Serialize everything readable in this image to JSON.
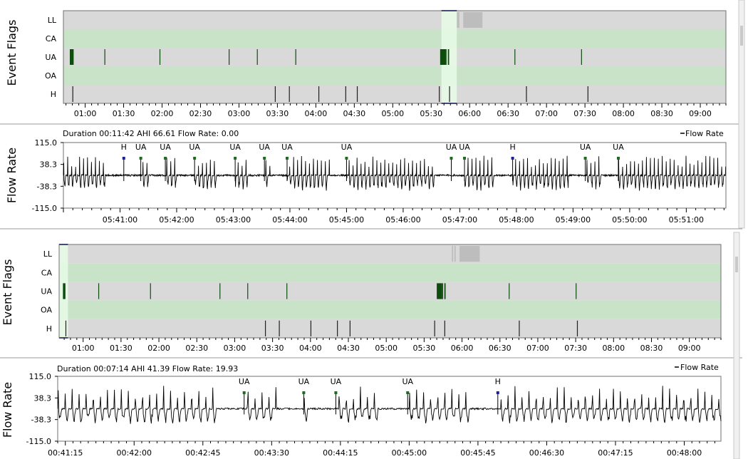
{
  "colors": {
    "row_gray": "#d9d9d9",
    "row_green": "#c8e3c8",
    "ua_mark": "#0e4d0e",
    "h_mark": "#1f1f9e",
    "ll_mark": "#bdbdbd",
    "selection_fill": "#e8fbe8",
    "selection_border": "#1a237e",
    "trace": "#000000"
  },
  "chart_data": [
    {
      "type": "event-flags",
      "ylabel": "Event Flags",
      "rows": [
        "LL",
        "CA",
        "UA",
        "OA",
        "H"
      ],
      "x_unit": "hh:mm",
      "xlim": [
        "00:43",
        "09:20"
      ],
      "tick_labels": [
        "01:00",
        "01:30",
        "02:00",
        "02:30",
        "03:00",
        "03:30",
        "04:00",
        "04:30",
        "05:00",
        "05:30",
        "06:00",
        "06:30",
        "07:00",
        "07:30",
        "08:00",
        "08:30",
        "09:00"
      ],
      "selection": [
        "05:38",
        "05:50"
      ],
      "events": {
        "LL": [
          {
            "t": "05:50",
            "d": 1
          },
          {
            "t": "05:51",
            "d": 1
          },
          {
            "t": "05:55",
            "d": 15
          }
        ],
        "UA": [
          {
            "t": "00:48",
            "d": 3
          },
          {
            "t": "01:15",
            "d": 0
          },
          {
            "t": "01:58",
            "d": 0
          },
          {
            "t": "02:52",
            "d": 0
          },
          {
            "t": "03:14",
            "d": 0
          },
          {
            "t": "03:44",
            "d": 0
          },
          {
            "t": "05:37",
            "d": 4
          },
          {
            "t": "05:41",
            "d": 1
          },
          {
            "t": "05:43",
            "d": 1
          },
          {
            "t": "06:35",
            "d": 0
          },
          {
            "t": "07:27",
            "d": 0
          }
        ],
        "H": [
          {
            "t": "00:50",
            "d": 0
          },
          {
            "t": "03:28",
            "d": 0
          },
          {
            "t": "03:39",
            "d": 0
          },
          {
            "t": "04:02",
            "d": 0
          },
          {
            "t": "04:23",
            "d": 0
          },
          {
            "t": "04:32",
            "d": 0
          },
          {
            "t": "05:36",
            "d": 0
          },
          {
            "t": "05:44",
            "d": 0
          },
          {
            "t": "06:44",
            "d": 0
          },
          {
            "t": "07:32",
            "d": 0
          }
        ]
      }
    },
    {
      "type": "line",
      "title": "Duration 00:11:42 AHI 66.61 Flow Rate: 0.00",
      "legend": "Flow Rate",
      "ylabel": "Flow Rate",
      "ytick_labels": [
        "115.0",
        "38.3",
        "-38.3",
        "-115.0"
      ],
      "ylim": [
        -115,
        115
      ],
      "x_unit": "hh:mm:ss",
      "xlim": [
        "05:40:00",
        "05:51:42"
      ],
      "tick_labels": [
        "05:41:00",
        "05:42:00",
        "05:43:00",
        "05:44:00",
        "05:45:00",
        "05:46:00",
        "05:47:00",
        "05:48:00",
        "05:49:00",
        "05:50:00",
        "05:51:00"
      ],
      "events": [
        {
          "label": "H",
          "t": "05:41:04"
        },
        {
          "label": "UA",
          "t": "05:41:22"
        },
        {
          "label": "UA",
          "t": "05:41:48"
        },
        {
          "label": "UA",
          "t": "05:42:19"
        },
        {
          "label": "UA",
          "t": "05:43:02"
        },
        {
          "label": "UA",
          "t": "05:43:33"
        },
        {
          "label": "UA",
          "t": "05:43:57"
        },
        {
          "label": "UA",
          "t": "05:45:00"
        },
        {
          "label": "UA",
          "t": "05:46:51"
        },
        {
          "label": "UA",
          "t": "05:47:05"
        },
        {
          "label": "H",
          "t": "05:47:56"
        },
        {
          "label": "UA",
          "t": "05:49:13"
        },
        {
          "label": "UA",
          "t": "05:49:48"
        }
      ]
    },
    {
      "type": "event-flags",
      "ylabel": "Event Flags",
      "rows": [
        "LL",
        "CA",
        "UA",
        "OA",
        "H"
      ],
      "x_unit": "hh:mm",
      "xlim": [
        "00:41",
        "09:25"
      ],
      "tick_labels": [
        "01:00",
        "01:30",
        "02:00",
        "02:30",
        "03:00",
        "03:30",
        "04:00",
        "04:30",
        "05:00",
        "05:30",
        "06:00",
        "06:30",
        "07:00",
        "07:30",
        "08:00",
        "08:30",
        "09:00"
      ],
      "selection": [
        "00:41",
        "00:48"
      ],
      "events": {
        "LL": [
          {
            "t": "05:52",
            "d": 1
          },
          {
            "t": "05:54",
            "d": 1
          },
          {
            "t": "05:58",
            "d": 16
          }
        ],
        "UA": [
          {
            "t": "00:44",
            "d": 2
          },
          {
            "t": "01:12",
            "d": 0
          },
          {
            "t": "01:53",
            "d": 0
          },
          {
            "t": "02:48",
            "d": 0
          },
          {
            "t": "03:10",
            "d": 0
          },
          {
            "t": "03:41",
            "d": 0
          },
          {
            "t": "05:40",
            "d": 4
          },
          {
            "t": "05:44",
            "d": 1
          },
          {
            "t": "05:46",
            "d": 1
          },
          {
            "t": "06:37",
            "d": 0
          },
          {
            "t": "07:30",
            "d": 0
          }
        ],
        "H": [
          {
            "t": "00:46",
            "d": 0
          },
          {
            "t": "03:24",
            "d": 0
          },
          {
            "t": "03:35",
            "d": 0
          },
          {
            "t": "04:00",
            "d": 0
          },
          {
            "t": "04:21",
            "d": 0
          },
          {
            "t": "04:31",
            "d": 0
          },
          {
            "t": "05:38",
            "d": 0
          },
          {
            "t": "05:46",
            "d": 0
          },
          {
            "t": "06:45",
            "d": 0
          },
          {
            "t": "07:31",
            "d": 0
          }
        ]
      }
    },
    {
      "type": "line",
      "title": "Duration 00:07:14 AHI 41.39 Flow Rate: 19.93",
      "legend": "Flow Rate",
      "ylabel": "Flow Rate",
      "ytick_labels": [
        "115.0",
        "38.3",
        "-38.3",
        "-115.0"
      ],
      "ylim": [
        -115,
        115
      ],
      "x_unit": "hh:mm:ss",
      "xlim": [
        "00:41:10",
        "00:48:24"
      ],
      "tick_labels": [
        "00:41:15",
        "00:42:00",
        "00:42:45",
        "00:43:30",
        "00:44:15",
        "00:45:00",
        "00:45:45",
        "00:46:30",
        "00:47:15",
        "00:48:00"
      ],
      "events": [
        {
          "label": "UA",
          "t": "00:43:12"
        },
        {
          "label": "UA",
          "t": "00:43:51"
        },
        {
          "label": "UA",
          "t": "00:44:12"
        },
        {
          "label": "UA",
          "t": "00:44:59"
        },
        {
          "label": "H",
          "t": "00:45:58"
        }
      ]
    }
  ]
}
